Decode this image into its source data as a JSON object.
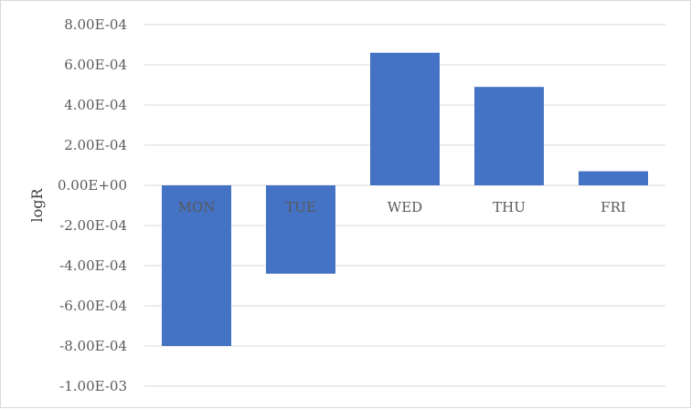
{
  "chart_data": {
    "type": "bar",
    "categories": [
      "MON",
      "TUE",
      "WED",
      "THU",
      "FRI"
    ],
    "values": [
      -0.0008,
      -0.00044,
      0.00066,
      0.00049,
      7e-05
    ],
    "title": "",
    "xlabel": "",
    "ylabel": "logR",
    "ylim": [
      -0.001,
      0.0008
    ],
    "yticks": [
      {
        "value": 0.0008,
        "label": "8.00E-04"
      },
      {
        "value": 0.0006,
        "label": "6.00E-04"
      },
      {
        "value": 0.0004,
        "label": "4.00E-04"
      },
      {
        "value": 0.0002,
        "label": "2.00E-04"
      },
      {
        "value": 0,
        "label": "0.00E+00"
      },
      {
        "value": -0.0002,
        "label": "-2.00E-04"
      },
      {
        "value": -0.0004,
        "label": "-4.00E-04"
      },
      {
        "value": -0.0006,
        "label": "-6.00E-04"
      },
      {
        "value": -0.0008,
        "label": "-8.00E-04"
      },
      {
        "value": -0.001,
        "label": "-1.00E-03"
      }
    ],
    "grid": true,
    "legend": "none",
    "bar_color": "#4472C4",
    "grid_color": "#d9d9d9"
  }
}
